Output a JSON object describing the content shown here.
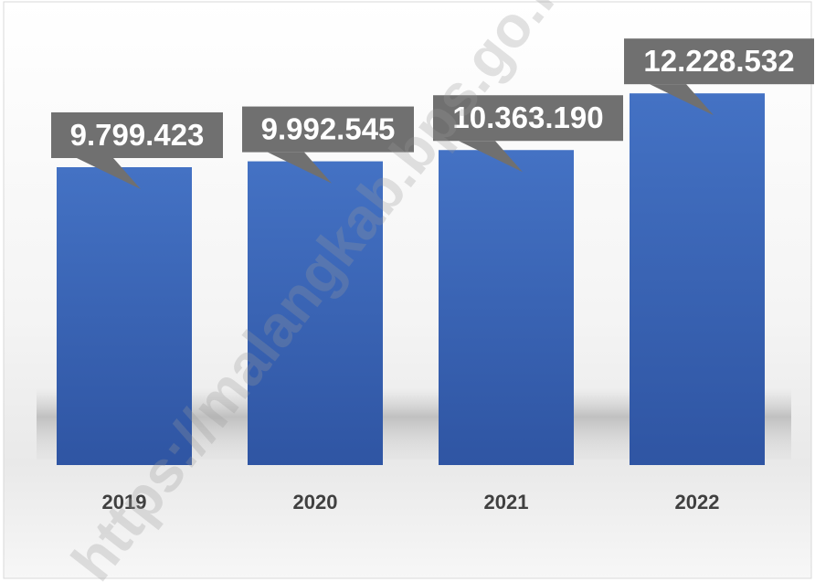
{
  "chart_data": {
    "type": "bar",
    "categories": [
      "2019",
      "2020",
      "2021",
      "2022"
    ],
    "values": [
      9799423,
      9992545,
      10363190,
      12228532
    ],
    "data_labels": [
      "9.799.423",
      "9.992.545",
      "10.363.190",
      "12.228.532"
    ],
    "title": "",
    "xlabel": "",
    "ylabel": "",
    "ylim": [
      0,
      15300000
    ],
    "grid": false,
    "legend": "none"
  },
  "colors": {
    "bar_top": "#4472c4",
    "bar_bottom": "#2f55a3",
    "label_box": "#707070",
    "label_text": "#ffffff",
    "category_text": "#404040"
  },
  "watermark": "https://malangkab.bps.go.id"
}
